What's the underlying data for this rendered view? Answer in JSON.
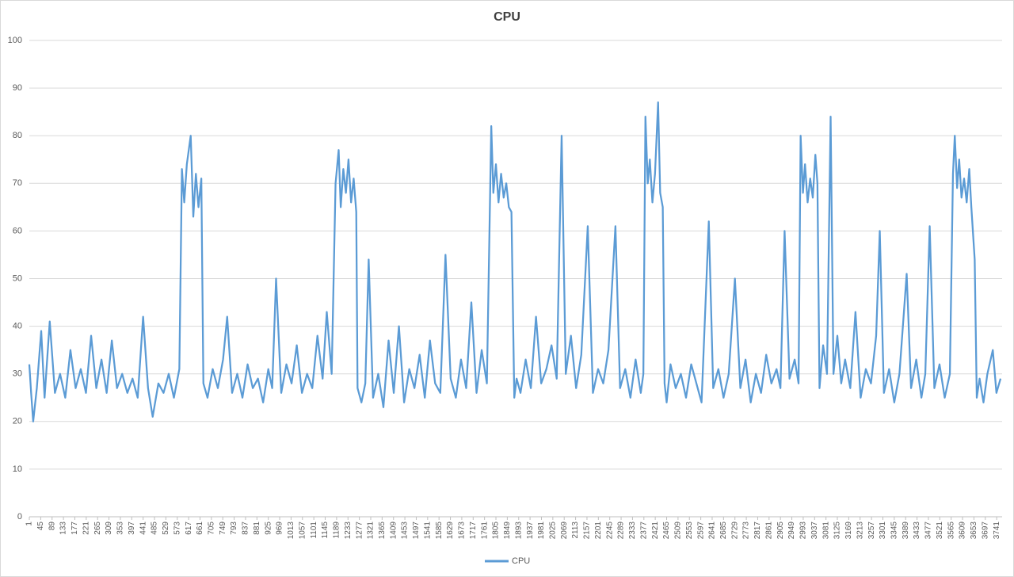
{
  "chart_data": {
    "type": "line",
    "title": "CPU",
    "x": [
      1,
      8,
      16,
      30,
      47,
      60,
      80,
      100,
      120,
      140,
      160,
      180,
      200,
      220,
      240,
      260,
      280,
      300,
      320,
      340,
      360,
      380,
      400,
      420,
      441,
      460,
      478,
      500,
      520,
      540,
      560,
      581,
      591,
      600,
      610,
      625,
      635,
      645,
      655,
      666,
      674,
      690,
      710,
      730,
      750,
      766,
      785,
      805,
      825,
      845,
      865,
      885,
      905,
      925,
      940,
      955,
      975,
      995,
      1015,
      1035,
      1055,
      1075,
      1095,
      1115,
      1135,
      1151,
      1170,
      1185,
      1197,
      1205,
      1215,
      1225,
      1235,
      1245,
      1255,
      1265,
      1270,
      1285,
      1300,
      1313,
      1330,
      1350,
      1370,
      1390,
      1410,
      1430,
      1450,
      1470,
      1490,
      1510,
      1530,
      1550,
      1570,
      1590,
      1610,
      1630,
      1650,
      1670,
      1690,
      1710,
      1730,
      1750,
      1770,
      1787,
      1795,
      1805,
      1815,
      1825,
      1835,
      1845,
      1855,
      1865,
      1876,
      1885,
      1900,
      1920,
      1940,
      1960,
      1980,
      2000,
      2020,
      2040,
      2059,
      2075,
      2095,
      2115,
      2135,
      2160,
      2180,
      2200,
      2220,
      2240,
      2267,
      2285,
      2305,
      2325,
      2345,
      2365,
      2375,
      2383,
      2392,
      2400,
      2410,
      2420,
      2432,
      2440,
      2450,
      2457,
      2465,
      2480,
      2500,
      2520,
      2540,
      2560,
      2580,
      2600,
      2628,
      2645,
      2665,
      2685,
      2705,
      2729,
      2750,
      2770,
      2790,
      2810,
      2830,
      2850,
      2870,
      2890,
      2905,
      2921,
      2940,
      2960,
      2975,
      2983,
      2992,
      3000,
      3010,
      3020,
      3030,
      3040,
      3048,
      3056,
      3070,
      3085,
      3099,
      3110,
      3125,
      3140,
      3155,
      3175,
      3195,
      3215,
      3235,
      3255,
      3275,
      3289,
      3305,
      3325,
      3345,
      3365,
      3393,
      3410,
      3430,
      3450,
      3465,
      3482,
      3500,
      3520,
      3540,
      3560,
      3572,
      3579,
      3588,
      3596,
      3605,
      3615,
      3625,
      3635,
      3643,
      3656,
      3664,
      3675,
      3690,
      3705,
      3726,
      3740,
      3756
    ],
    "series": [
      {
        "name": "CPU",
        "color": "#5b9bd5",
        "values": [
          32,
          26,
          20,
          27,
          39,
          25,
          41,
          26,
          30,
          25,
          35,
          27,
          31,
          26,
          38,
          27,
          33,
          26,
          37,
          27,
          30,
          26,
          29,
          25,
          42,
          27,
          21,
          28,
          26,
          30,
          25,
          31,
          73,
          66,
          74,
          80,
          63,
          72,
          65,
          71,
          28,
          25,
          31,
          27,
          33,
          42,
          26,
          30,
          25,
          32,
          27,
          29,
          24,
          31,
          27,
          50,
          26,
          32,
          28,
          36,
          26,
          30,
          27,
          38,
          29,
          43,
          30,
          70,
          77,
          65,
          73,
          68,
          75,
          66,
          71,
          64,
          27,
          24,
          28,
          54,
          25,
          30,
          23,
          37,
          26,
          40,
          24,
          31,
          27,
          34,
          25,
          37,
          28,
          26,
          55,
          29,
          25,
          33,
          27,
          45,
          26,
          35,
          28,
          82,
          68,
          74,
          66,
          72,
          67,
          70,
          65,
          64,
          25,
          29,
          26,
          33,
          27,
          42,
          28,
          31,
          36,
          29,
          80,
          30,
          38,
          27,
          34,
          61,
          26,
          31,
          28,
          35,
          61,
          27,
          31,
          25,
          33,
          26,
          30,
          84,
          70,
          75,
          66,
          72,
          87,
          68,
          65,
          28,
          24,
          32,
          27,
          30,
          25,
          32,
          28,
          24,
          62,
          27,
          31,
          25,
          30,
          50,
          27,
          33,
          24,
          30,
          26,
          34,
          28,
          31,
          27,
          60,
          29,
          33,
          28,
          80,
          68,
          74,
          66,
          71,
          67,
          76,
          70,
          27,
          36,
          30,
          84,
          30,
          38,
          28,
          33,
          27,
          43,
          25,
          31,
          28,
          38,
          60,
          26,
          31,
          24,
          30,
          51,
          27,
          33,
          25,
          30,
          61,
          27,
          32,
          25,
          30,
          72,
          80,
          69,
          75,
          67,
          71,
          66,
          73,
          65,
          54,
          25,
          29,
          24,
          30,
          35,
          26,
          29
        ]
      }
    ],
    "xlim": [
      1,
      3762
    ],
    "xticks": [
      1,
      45,
      89,
      133,
      177,
      221,
      265,
      309,
      353,
      397,
      441,
      485,
      529,
      573,
      617,
      661,
      705,
      749,
      793,
      837,
      881,
      925,
      969,
      1013,
      1057,
      1101,
      1145,
      1189,
      1233,
      1277,
      1321,
      1365,
      1409,
      1453,
      1497,
      1541,
      1585,
      1629,
      1673,
      1717,
      1761,
      1805,
      1849,
      1893,
      1937,
      1981,
      2025,
      2069,
      2113,
      2157,
      2201,
      2245,
      2289,
      2333,
      2377,
      2421,
      2465,
      2509,
      2553,
      2597,
      2641,
      2685,
      2729,
      2773,
      2817,
      2861,
      2905,
      2949,
      2993,
      3037,
      3081,
      3125,
      3169,
      3213,
      3257,
      3301,
      3345,
      3389,
      3433,
      3477,
      3521,
      3565,
      3609,
      3653,
      3697,
      3741
    ],
    "ylim": [
      0,
      100
    ],
    "yticks": [
      0,
      10,
      20,
      30,
      40,
      50,
      60,
      70,
      80,
      90,
      100
    ],
    "grid": true,
    "legend": "bottom"
  }
}
